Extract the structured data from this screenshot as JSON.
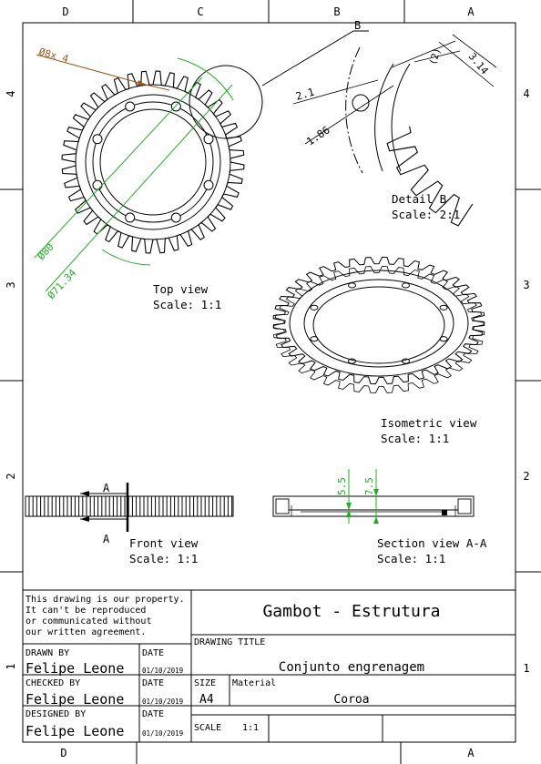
{
  "border": {
    "top_cols": [
      "D",
      "C",
      "B",
      "A"
    ],
    "bottom_cols": [
      "D",
      "A"
    ],
    "rows": [
      "4",
      "3",
      "2",
      "1"
    ]
  },
  "views": {
    "top": {
      "title": "Top view",
      "scale": "Scale:  1:1"
    },
    "detail": {
      "title": "Detail B",
      "scale": "Scale:  2:1",
      "marker": "B"
    },
    "iso": {
      "title": "Isometric view",
      "scale": "Scale:  1:1"
    },
    "front": {
      "title": "Front view",
      "scale": "Scale:  1:1",
      "section_a_top": "A",
      "section_a_bottom": "A"
    },
    "section": {
      "title": "Section view A-A",
      "scale": "Scale:  1:1"
    }
  },
  "dimensions": {
    "hole": "Ø8x 4",
    "d80": "Ø80",
    "d71": "Ø71.34",
    "d21": "2.1",
    "d186": "1.86",
    "d2": "(2)",
    "d314": "3.14",
    "d55": "5.5",
    "d75": "7.5"
  },
  "colors": {
    "dim_green": "#22b022",
    "dim_brown": "#9a5a1a",
    "outline": "#000000"
  },
  "title_block": {
    "notice": [
      "This drawing is our property.",
      "It can't be reproduced",
      "or communicated without",
      "our written agreement."
    ],
    "company": "Gambot - Estrutura",
    "drawing_title_label": "DRAWING TITLE",
    "drawing_title": "Conjunto engrenagem",
    "drawn_by_label": "DRAWN BY",
    "drawn_by": "Felipe Leone",
    "checked_by_label": "CHECKED BY",
    "checked_by": "Felipe Leone",
    "designed_by_label": "DESIGNED BY",
    "designed_by": "Felipe Leone",
    "date_label": "DATE",
    "date1": "01/10/2019",
    "date2": "01/10/2019",
    "date3": "01/10/2019",
    "size_label": "SIZE",
    "size": "A4",
    "material_label": "Material",
    "material": "Coroa",
    "scale_label": "SCALE",
    "scale": "1:1"
  }
}
